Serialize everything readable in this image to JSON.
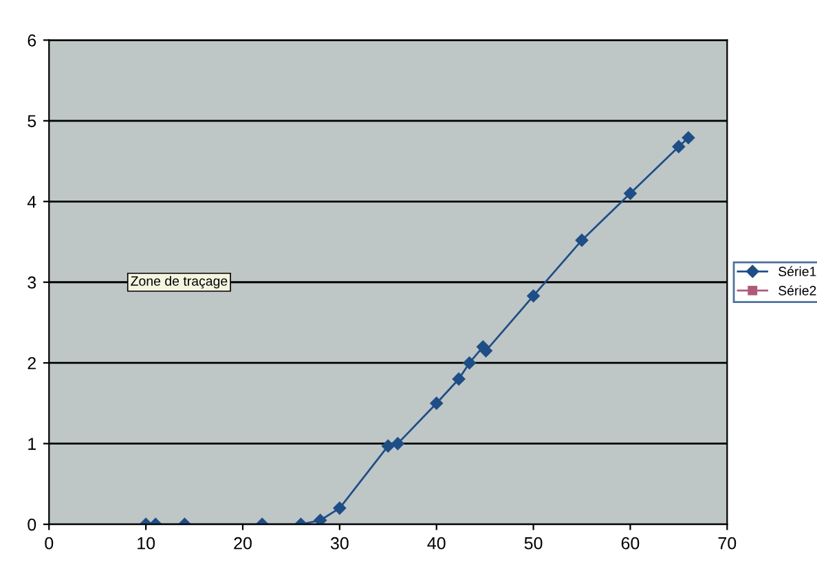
{
  "chart_data": {
    "type": "line",
    "series": [
      {
        "name": "Série1",
        "color": "#1f4e86",
        "marker": "diamond",
        "x": [
          10,
          11,
          14,
          22,
          26,
          28,
          30,
          35,
          36,
          40,
          42.3,
          43.4,
          44.8,
          45.1,
          50,
          55,
          60,
          65,
          66
        ],
        "values": [
          0,
          0,
          0,
          0,
          0,
          0.05,
          0.2,
          0.97,
          1.0,
          1.5,
          1.8,
          2.0,
          2.2,
          2.15,
          2.83,
          3.52,
          4.1,
          4.68,
          4.79
        ]
      },
      {
        "name": "Série2",
        "color": "#b05a7a",
        "marker": "square"
      }
    ],
    "xlim": [
      0,
      70
    ],
    "xticks": [
      0,
      10,
      20,
      30,
      40,
      50,
      60,
      70
    ],
    "ylim": [
      0,
      6
    ],
    "yticks": [
      0,
      1,
      2,
      3,
      4,
      5,
      6
    ],
    "grid": "y",
    "legend": "right",
    "line_style": "solid",
    "annotations": [
      "Zone de traçage"
    ]
  }
}
